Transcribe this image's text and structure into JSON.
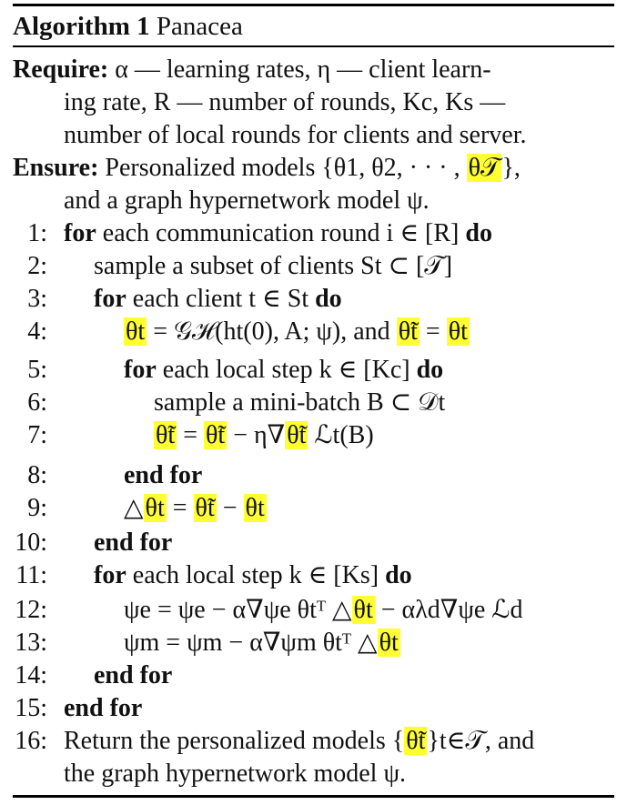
{
  "title": {
    "label": "Algorithm 1",
    "name": "Panacea"
  },
  "require": {
    "kw": "Require:",
    "line1": "α — learning rates, η — client learn-",
    "line2": "ing rate, R — number of rounds, Kc, Ks —",
    "line3": "number of local rounds for clients and server."
  },
  "ensure": {
    "kw": "Ensure:",
    "line1_pre": "Personalized models {θ1, θ2, · · · , ",
    "line1_hl": "θ𝒯",
    "line1_post": "},",
    "line2": "and a graph hypernetwork model ψ."
  },
  "lines": [
    {
      "n": "1:",
      "pre_kw": "for",
      "text": " each communication round i ∈ [R] ",
      "post_kw": "do"
    },
    {
      "n": "2:",
      "text": "sample a subset of clients St ⊂ [𝒯]"
    },
    {
      "n": "3:",
      "pre_kw": "for",
      "text": " each client t ∈ St ",
      "post_kw": "do"
    },
    {
      "n": "4:",
      "hl1": "θt",
      "mid": " = 𝒢ℋ(ht(0), A; ψ), and ",
      "hl2": "θ̃t",
      "mid2": " = ",
      "hl3": "θt"
    },
    {
      "n": "5:",
      "pre_kw": "for",
      "text": " each local step k ∈ [Kc] ",
      "post_kw": "do"
    },
    {
      "n": "6:",
      "text": "sample a mini-batch B ⊂ 𝒟t"
    },
    {
      "n": "7:",
      "hl1": "θ̃t",
      "mid": " = ",
      "hl2": "θ̃t",
      "mid2": " − η∇",
      "hl3": "θ̃t",
      "tail": " ℒt(B)"
    },
    {
      "n": "8:",
      "pre_kw": "end for"
    },
    {
      "n": "9:",
      "pre": "△",
      "hl1": "θt",
      "mid": " = ",
      "hl2": "θ̃t",
      "mid2": " − ",
      "hl3": "θt"
    },
    {
      "n": "10:",
      "pre_kw": "end for"
    },
    {
      "n": "11:",
      "pre_kw": "for",
      "text": " each local step k ∈ [Ks] ",
      "post_kw": "do"
    },
    {
      "n": "12:",
      "pre": "ψe = ψe − α∇ψe θtᵀ △",
      "hl1": "θt",
      "tail": " − αλd∇ψe ℒd"
    },
    {
      "n": "13:",
      "pre": "ψm = ψm − α∇ψm θtᵀ △",
      "hl1": "θt"
    },
    {
      "n": "14:",
      "pre_kw": "end for"
    },
    {
      "n": "15:",
      "pre_kw": "end for"
    },
    {
      "n": "16:",
      "pre": "Return the personalized models {",
      "hl1": "θ̃t",
      "tail": "}t∈𝒯, and"
    },
    {
      "n": "",
      "text": "the graph hypernetwork model ψ."
    }
  ]
}
